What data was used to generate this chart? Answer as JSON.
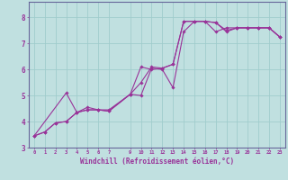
{
  "xlabel": "Windchill (Refroidissement éolien,°C)",
  "bg_color": "#c0e0e0",
  "grid_color": "#a0cccc",
  "line_color": "#993399",
  "spine_color": "#666699",
  "xlim": [
    -0.5,
    23.5
  ],
  "ylim": [
    3.0,
    8.6
  ],
  "xticks": [
    0,
    1,
    2,
    3,
    4,
    5,
    6,
    7,
    9,
    10,
    11,
    12,
    13,
    14,
    15,
    16,
    17,
    18,
    19,
    20,
    21,
    22,
    23
  ],
  "yticks": [
    3,
    4,
    5,
    6,
    7,
    8
  ],
  "series1_x": [
    0,
    1,
    2,
    3,
    4,
    5,
    6,
    7,
    9,
    10,
    11,
    12,
    13,
    14,
    15,
    16,
    17,
    18,
    19,
    20,
    21,
    22,
    23
  ],
  "series1_y": [
    3.45,
    3.6,
    3.95,
    4.0,
    4.35,
    4.45,
    4.45,
    4.4,
    5.05,
    5.0,
    6.05,
    6.0,
    5.3,
    7.45,
    7.85,
    7.85,
    7.8,
    7.45,
    7.6,
    7.6,
    7.6,
    7.6,
    7.25
  ],
  "series2_x": [
    0,
    3,
    4,
    5,
    6,
    7,
    9,
    10,
    11,
    12,
    13,
    14,
    15,
    16,
    17,
    18,
    19,
    20,
    21,
    22,
    23
  ],
  "series2_y": [
    3.45,
    5.1,
    4.35,
    4.55,
    4.45,
    4.45,
    5.05,
    6.1,
    6.0,
    6.05,
    6.2,
    7.85,
    7.85,
    7.85,
    7.45,
    7.6,
    7.6,
    7.6,
    7.6,
    7.6,
    7.25
  ],
  "series3_x": [
    0,
    1,
    2,
    3,
    4,
    5,
    6,
    7,
    9,
    10,
    11,
    12,
    13,
    14,
    15,
    16,
    17,
    18,
    19,
    20,
    21,
    22,
    23
  ],
  "series3_y": [
    3.45,
    3.6,
    3.95,
    4.0,
    4.35,
    4.45,
    4.45,
    4.4,
    5.05,
    5.5,
    6.1,
    6.05,
    6.2,
    7.85,
    7.85,
    7.85,
    7.8,
    7.5,
    7.6,
    7.6,
    7.6,
    7.6,
    7.25
  ]
}
